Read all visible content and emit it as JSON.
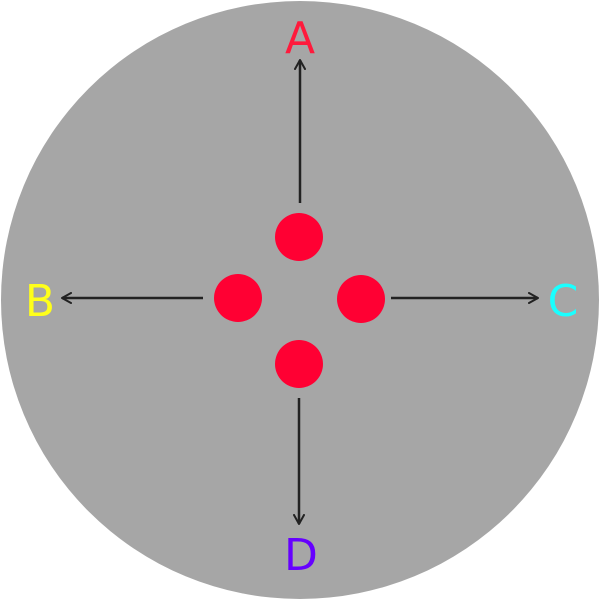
{
  "colors": {
    "background": "#a6a6a6",
    "dot": "#ff0033",
    "arrow": "#222222"
  },
  "directions": {
    "up": {
      "label": "A",
      "color": "#ff1a3c"
    },
    "left": {
      "label": "B",
      "color": "#ffff1a"
    },
    "right": {
      "label": "C",
      "color": "#1affff"
    },
    "down": {
      "label": "D",
      "color": "#6600ff"
    }
  }
}
